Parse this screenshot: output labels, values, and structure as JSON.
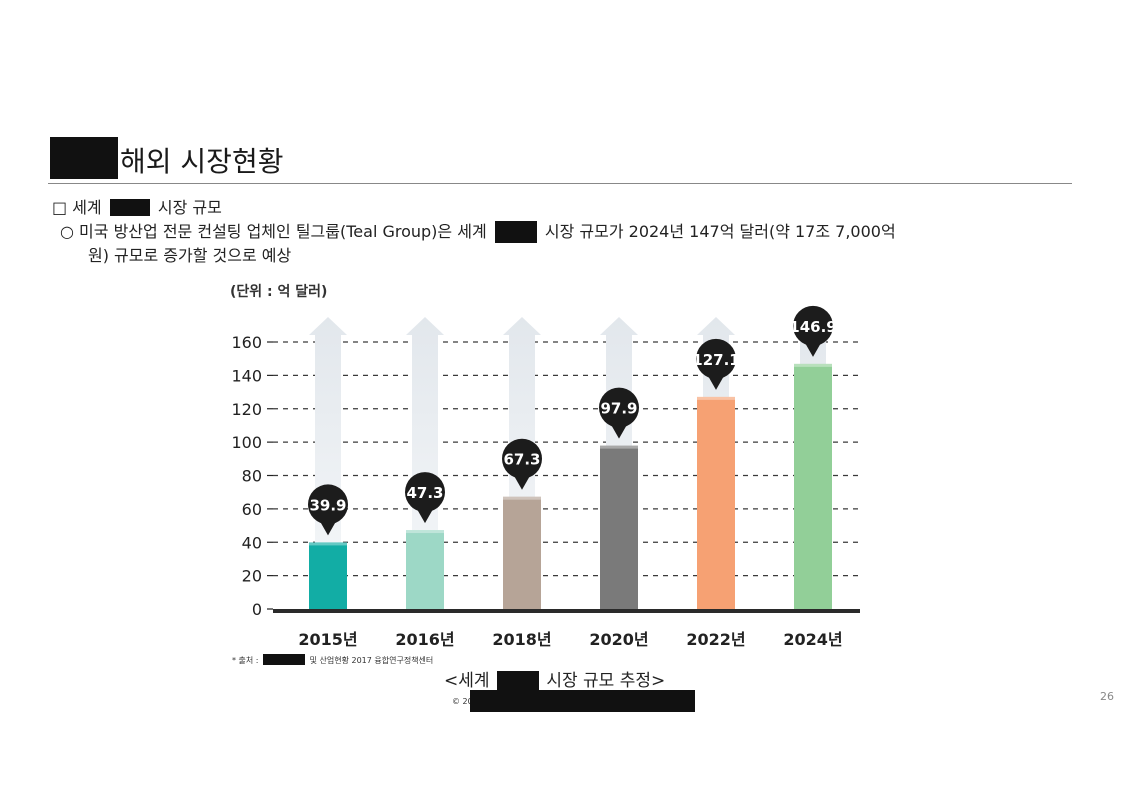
{
  "slide": {
    "title": "해외 시장현황",
    "section_prefix": "□ 세계",
    "section_suffix": "시장 규모",
    "bullet_line1_prefix": "○ 미국 방산업 전문 컨설팅 업체인 틸그룹(Teal Group)은 세계",
    "bullet_line1_suffix": "시장 규모가 2024년 147억 달러(약 17조 7,000억",
    "bullet_line2": "원) 규모로 증가할 것으로 예상",
    "source_prefix": "* 출처 :",
    "source_suffix": "및 산업현황 2017 융합연구정책센터",
    "caption_prefix": "<세계",
    "caption_suffix": "시장 규모 추정>",
    "copyright": "© 20",
    "page_number": "26"
  },
  "chart_data": {
    "type": "bar",
    "unit_label": "(단위 : 억 달러)",
    "categories": [
      "2015년",
      "2016년",
      "2018년",
      "2020년",
      "2022년",
      "2024년"
    ],
    "values": [
      39.9,
      47.3,
      67.3,
      97.9,
      127.1,
      146.9
    ],
    "value_labels": [
      "39.9",
      "47.3",
      "67.3",
      "97.9",
      "127.1",
      "146.9"
    ],
    "bar_colors": [
      "#12ada5",
      "#9dd8c6",
      "#b6a497",
      "#7a7a7a",
      "#f6a173",
      "#92cf98"
    ],
    "yticks": [
      0,
      20,
      40,
      60,
      80,
      100,
      120,
      140,
      160
    ],
    "ylim": [
      0,
      160
    ],
    "grid": "dashed horizontal",
    "label_style": "dark pin callouts"
  }
}
